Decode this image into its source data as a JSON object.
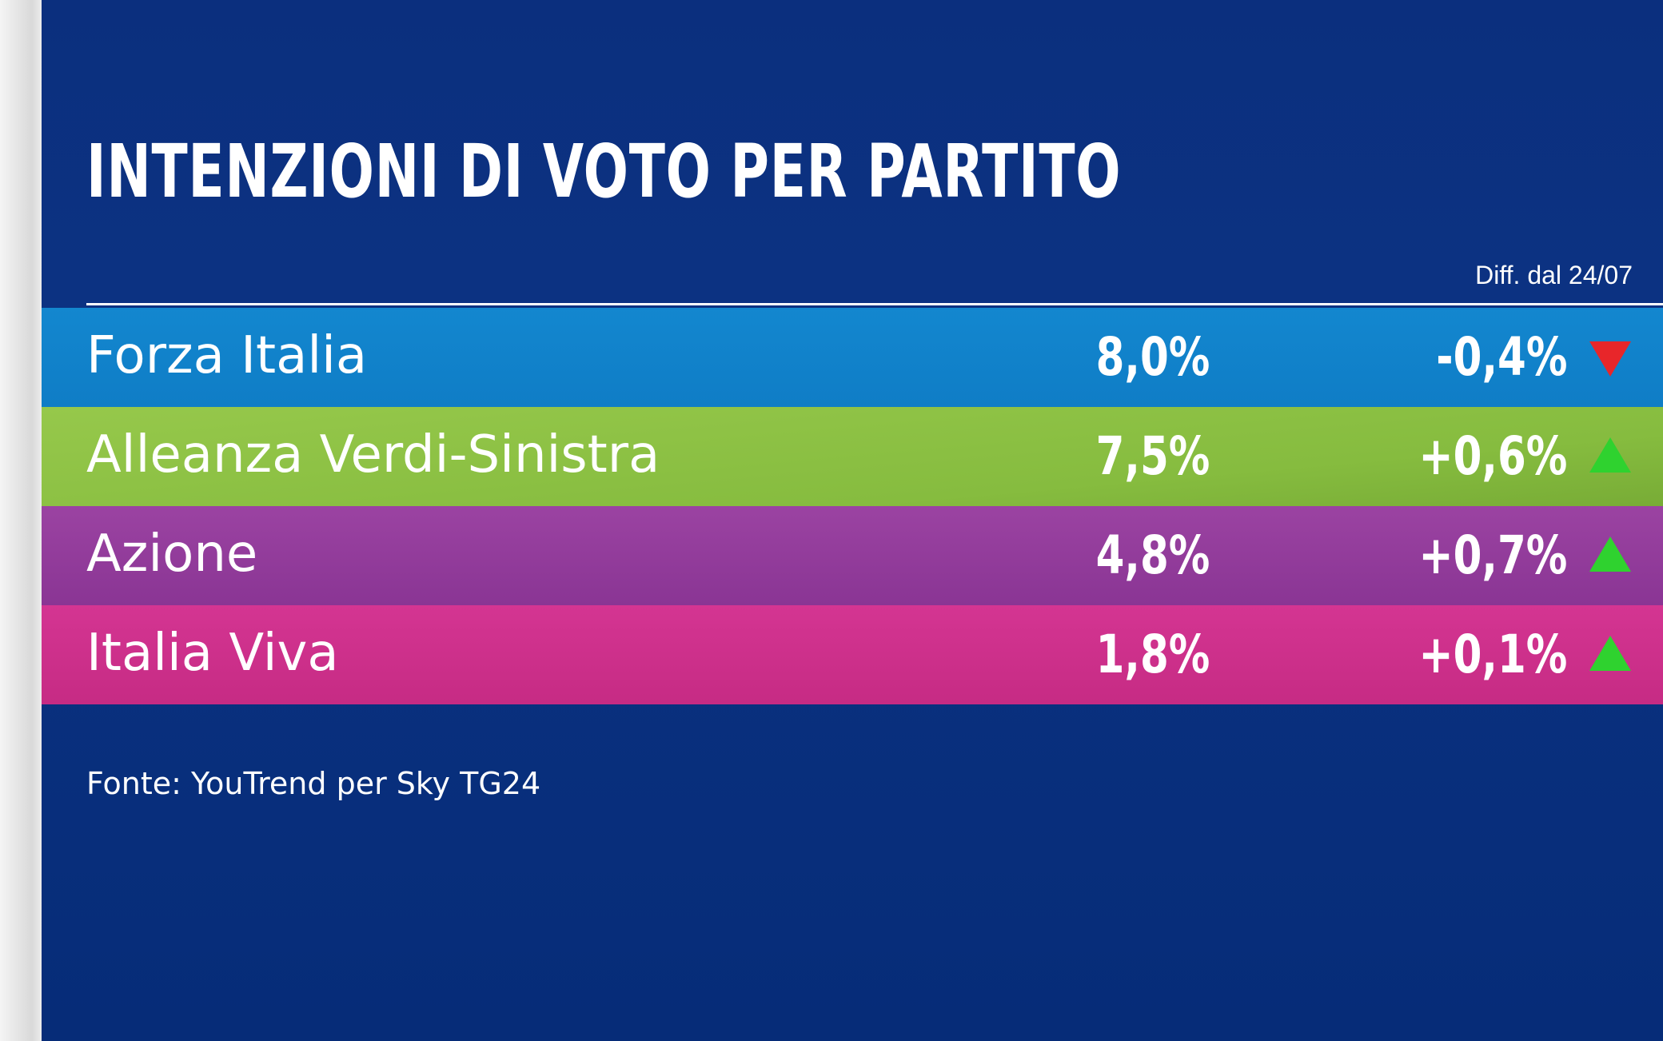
{
  "title": "INTENZIONI DI VOTO PER PARTITO",
  "diff_header": "Diff. dal 24/07",
  "colors": {
    "background": "#0b2f7e",
    "forza_italia": "#1387cf",
    "avs": "#8cc244",
    "azione": "#923c9b",
    "italia_viva": "#cf318c",
    "arrow_down": "#e8262a",
    "arrow_up": "#2fd22f"
  },
  "rows": [
    {
      "party": "Forza Italia",
      "value": "8,0%",
      "diff": "-0,4%",
      "trend": "down",
      "trend_icon": "triangle-down-icon"
    },
    {
      "party": "Alleanza Verdi-Sinistra",
      "value": "7,5%",
      "diff": "+0,6%",
      "trend": "up",
      "trend_icon": "triangle-up-icon"
    },
    {
      "party": "Azione",
      "value": "4,8%",
      "diff": "+0,7%",
      "trend": "up",
      "trend_icon": "triangle-up-icon"
    },
    {
      "party": "Italia Viva",
      "value": "1,8%",
      "diff": "+0,1%",
      "trend": "up",
      "trend_icon": "triangle-up-icon"
    }
  ],
  "source": "Fonte: YouTrend per Sky TG24"
}
